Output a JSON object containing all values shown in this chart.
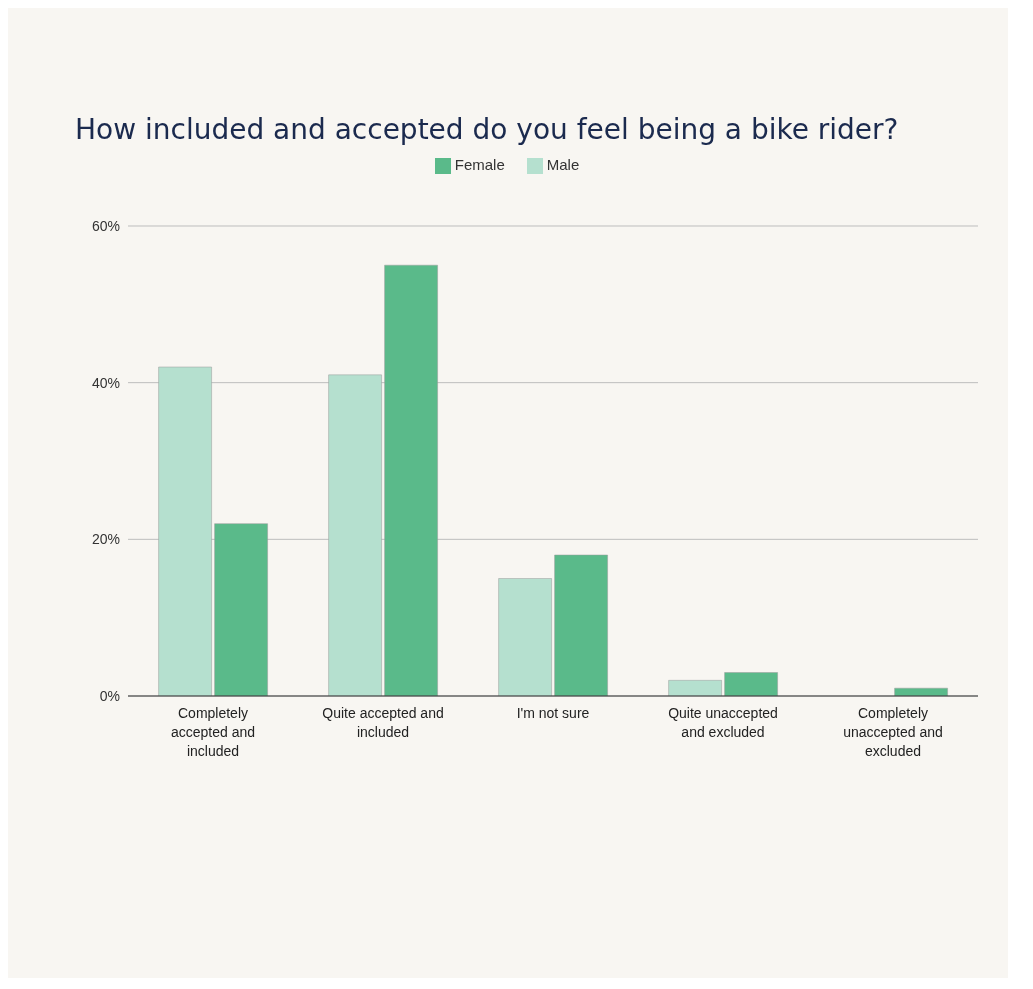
{
  "chart_data": {
    "type": "bar",
    "title": "How included and accepted do you feel being a bike rider?",
    "categories": [
      "Completely accepted and included",
      "Quite accepted and included",
      "I'm not sure",
      "Quite unaccepted and excluded",
      "Completely unaccepted and excluded"
    ],
    "series": [
      {
        "name": "Male",
        "color": "#b5e0cf",
        "values": [
          42,
          41,
          15,
          2,
          0
        ]
      },
      {
        "name": "Female",
        "color": "#5aba8a",
        "values": [
          22,
          55,
          18,
          3,
          1
        ]
      }
    ],
    "ylim": [
      0,
      60
    ],
    "yticks": [
      {
        "value": 0,
        "label": "0%"
      },
      {
        "value": 20,
        "label": "20%"
      },
      {
        "value": 40,
        "label": "40%"
      },
      {
        "value": 60,
        "label": "60%"
      }
    ],
    "grid": "y",
    "legend": "top"
  }
}
